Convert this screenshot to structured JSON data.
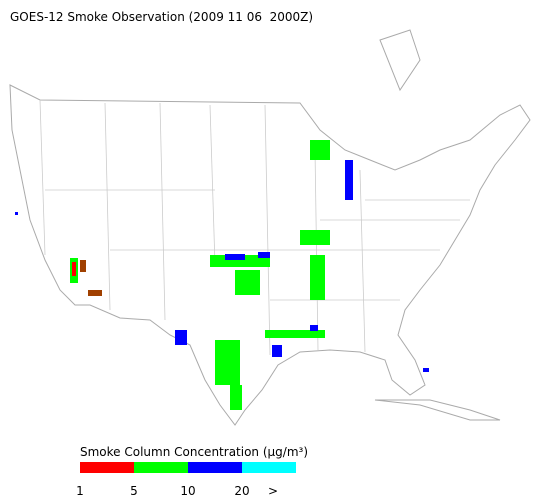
{
  "header": {
    "title": "GOES-12 Smoke Observation (2009 11 06  2000Z)"
  },
  "legend": {
    "title": "Smoke Column Concentration (μg/m³)",
    "colors": [
      "#ff0000",
      "#00ff00",
      "#0000ff",
      "#00ffff"
    ],
    "labels": [
      "1",
      "5",
      "10",
      "20",
      ">"
    ]
  }
}
